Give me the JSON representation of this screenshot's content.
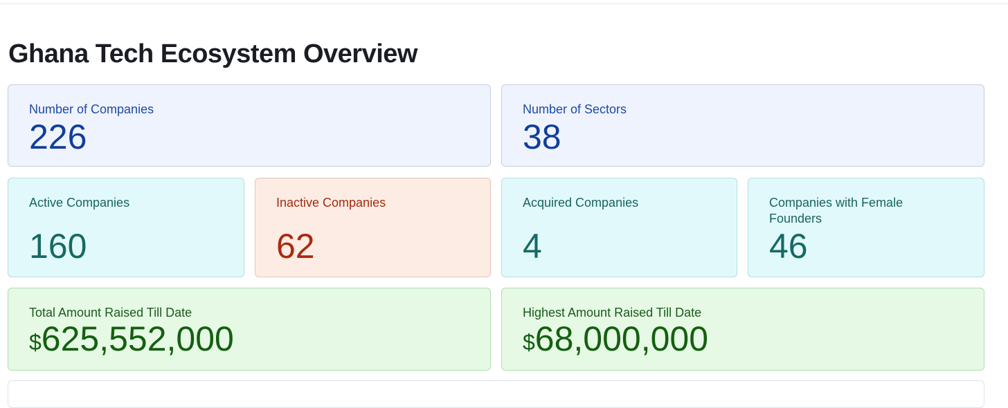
{
  "page_title": "Ghana Tech Ecosystem Overview",
  "cards": {
    "companies": {
      "label": "Number of Companies",
      "value": "226"
    },
    "sectors": {
      "label": "Number of Sectors",
      "value": "38"
    },
    "active": {
      "label": "Active Companies",
      "value": "160"
    },
    "inactive": {
      "label": "Inactive Companies",
      "value": "62"
    },
    "acquired": {
      "label": "Acquired Companies",
      "value": "4"
    },
    "female_founders": {
      "label": "Companies with Female Founders",
      "value": "46"
    },
    "total_raised": {
      "label": "Total Amount Raised Till Date",
      "currency": "$",
      "value": "625,552,000"
    },
    "highest_raised": {
      "label": "Highest Amount Raised Till Date",
      "currency": "$",
      "value": "68,000,000"
    }
  },
  "colors": {
    "blue_card_bg": "#eff3fd",
    "teal_card_bg": "#e2f9fb",
    "red_card_bg": "#fdece3",
    "green_card_bg": "#e5f9e4"
  }
}
